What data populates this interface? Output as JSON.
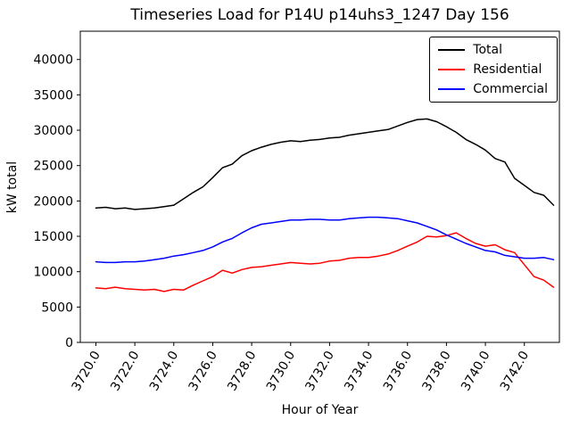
{
  "chart_data": {
    "type": "line",
    "title": "Timeseries Load for P14U p14uhs3_1247  Day 156",
    "xlabel": "Hour of Year",
    "ylabel": "kW total",
    "xlim": [
      3719.2,
      3743.8
    ],
    "ylim": [
      0,
      44000
    ],
    "grid": false,
    "legend_position": "upper right",
    "x_ticks": [
      {
        "value": 3720,
        "label": "3720.0"
      },
      {
        "value": 3722,
        "label": "3722.0"
      },
      {
        "value": 3724,
        "label": "3724.0"
      },
      {
        "value": 3726,
        "label": "3726.0"
      },
      {
        "value": 3728,
        "label": "3728.0"
      },
      {
        "value": 3730,
        "label": "3730.0"
      },
      {
        "value": 3732,
        "label": "3732.0"
      },
      {
        "value": 3734,
        "label": "3734.0"
      },
      {
        "value": 3736,
        "label": "3736.0"
      },
      {
        "value": 3738,
        "label": "3738.0"
      },
      {
        "value": 3740,
        "label": "3740.0"
      },
      {
        "value": 3742,
        "label": "3742.0"
      }
    ],
    "y_ticks": [
      {
        "value": 0,
        "label": "0"
      },
      {
        "value": 5000,
        "label": "5000"
      },
      {
        "value": 10000,
        "label": "10000"
      },
      {
        "value": 15000,
        "label": "15000"
      },
      {
        "value": 20000,
        "label": "20000"
      },
      {
        "value": 25000,
        "label": "25000"
      },
      {
        "value": 30000,
        "label": "30000"
      },
      {
        "value": 35000,
        "label": "35000"
      },
      {
        "value": 40000,
        "label": "40000"
      }
    ],
    "x": [
      3720,
      3720.5,
      3721,
      3721.5,
      3722,
      3722.5,
      3723,
      3723.5,
      3724,
      3724.5,
      3725,
      3725.5,
      3726,
      3726.5,
      3727,
      3727.5,
      3728,
      3728.5,
      3729,
      3729.5,
      3730,
      3730.5,
      3731,
      3731.5,
      3732,
      3732.5,
      3733,
      3733.5,
      3734,
      3734.5,
      3735,
      3735.5,
      3736,
      3736.5,
      3737,
      3737.5,
      3738,
      3738.5,
      3739,
      3739.5,
      3740,
      3740.5,
      3741,
      3741.5,
      3742,
      3742.5,
      3743,
      3743.5
    ],
    "series": [
      {
        "name": "Total",
        "color": "#000000",
        "values": [
          19000,
          19100,
          18900,
          19000,
          18800,
          18900,
          19000,
          19200,
          19400,
          20300,
          21200,
          22000,
          23300,
          24700,
          25200,
          26400,
          27100,
          27600,
          28000,
          28300,
          28500,
          28400,
          28600,
          28700,
          28900,
          29000,
          29300,
          29500,
          29700,
          29900,
          30100,
          30600,
          31100,
          31500,
          31600,
          31200,
          30500,
          29700,
          28700,
          28000,
          27200,
          26000,
          25500,
          23200,
          22200,
          21200,
          20800,
          19400
        ]
      },
      {
        "name": "Residential",
        "color": "#ff0000",
        "values": [
          7700,
          7600,
          7800,
          7600,
          7500,
          7400,
          7500,
          7200,
          7500,
          7400,
          8100,
          8700,
          9300,
          10200,
          9800,
          10300,
          10600,
          10700,
          10900,
          11100,
          11300,
          11200,
          11100,
          11200,
          11500,
          11600,
          11900,
          12000,
          12000,
          12200,
          12500,
          13000,
          13600,
          14200,
          15000,
          14900,
          15100,
          15500,
          14700,
          14000,
          13600,
          13800,
          13100,
          12700,
          11000,
          9300,
          8800,
          7800
        ]
      },
      {
        "name": "Commercial",
        "color": "#0000ff",
        "values": [
          11400,
          11300,
          11300,
          11400,
          11400,
          11500,
          11700,
          11900,
          12200,
          12400,
          12700,
          13000,
          13500,
          14200,
          14700,
          15500,
          16200,
          16700,
          16900,
          17100,
          17300,
          17300,
          17400,
          17400,
          17300,
          17300,
          17500,
          17600,
          17700,
          17700,
          17600,
          17500,
          17200,
          16900,
          16400,
          15900,
          15200,
          14600,
          14000,
          13500,
          13000,
          12800,
          12300,
          12100,
          11900,
          11900,
          12000,
          11700
        ]
      }
    ]
  }
}
